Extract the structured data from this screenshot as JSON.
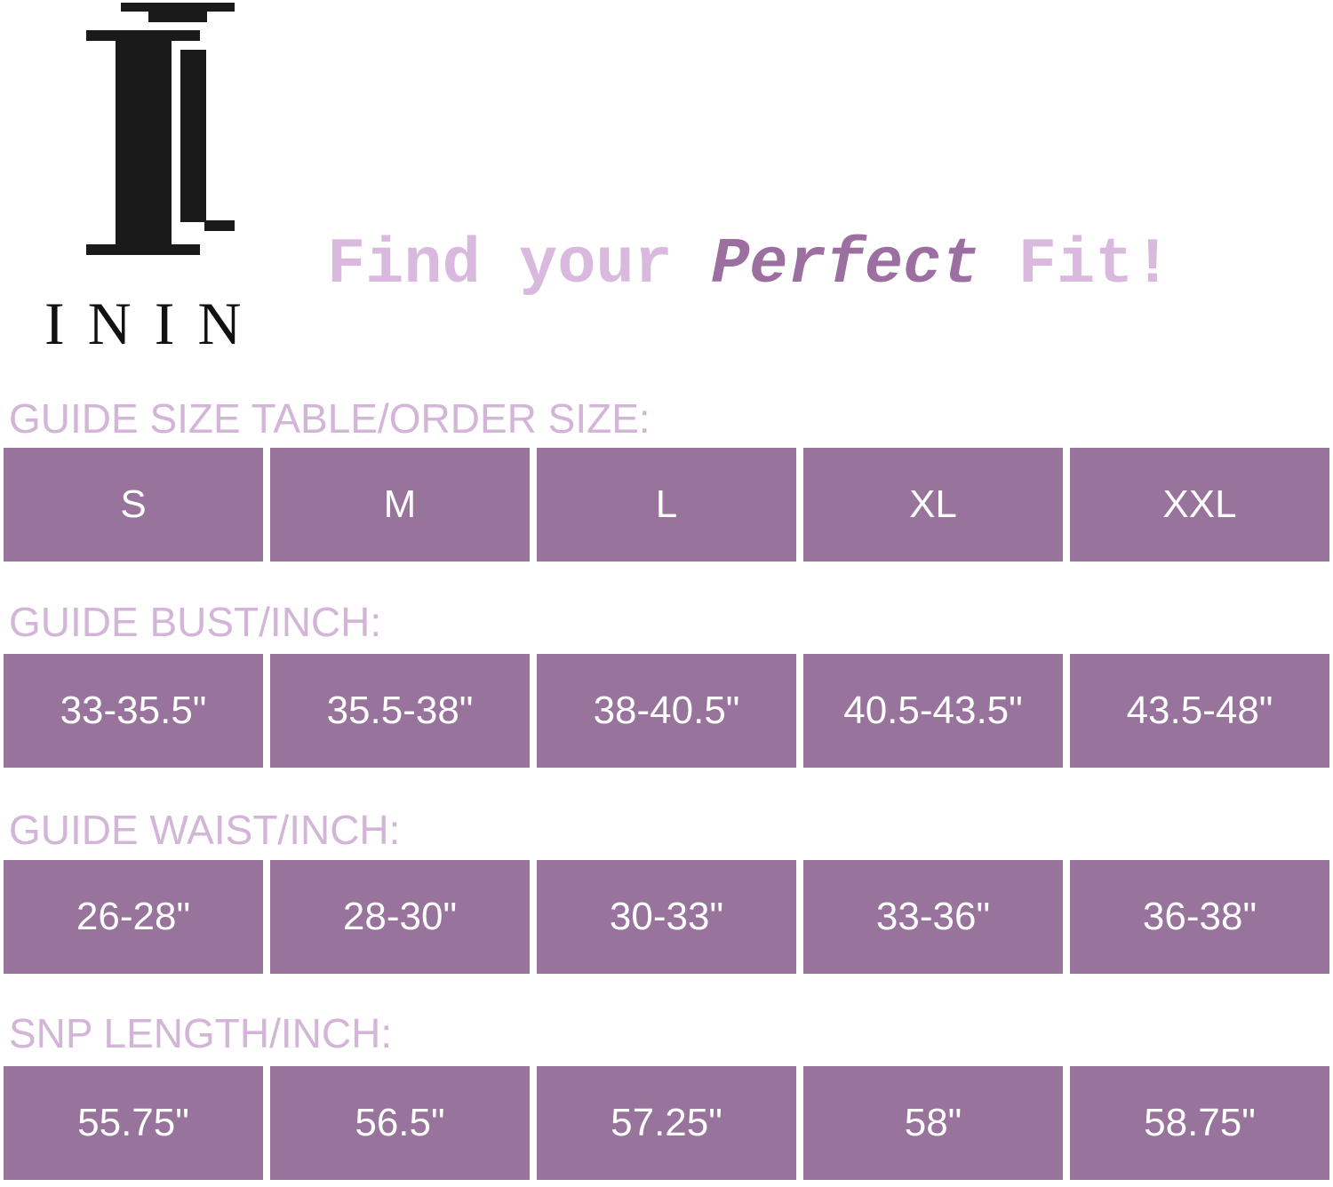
{
  "brand": {
    "name": "ININ"
  },
  "headline": {
    "part1": "Find your",
    "part2": "Perfect",
    "part3": "Fit!"
  },
  "colors": {
    "cell": "#98739c",
    "label": "#d3b5d7",
    "accent": "#9b6f9f"
  },
  "sections": [
    {
      "label": "GUIDE SIZE TABLE/ORDER SIZE:",
      "values": [
        "S",
        "M",
        "L",
        "XL",
        "XXL"
      ]
    },
    {
      "label": "GUIDE BUST/INCH:",
      "values": [
        "33-35.5\"",
        "35.5-38\"",
        "38-40.5\"",
        "40.5-43.5\"",
        "43.5-48\""
      ]
    },
    {
      "label": "GUIDE WAIST/INCH:",
      "values": [
        "26-28\"",
        "28-30\"",
        "30-33\"",
        "33-36\"",
        "36-38\""
      ]
    },
    {
      "label": "SNP LENGTH/INCH:",
      "values": [
        "55.75\"",
        "56.5\"",
        "57.25\"",
        "58\"",
        "58.75\""
      ]
    }
  ]
}
